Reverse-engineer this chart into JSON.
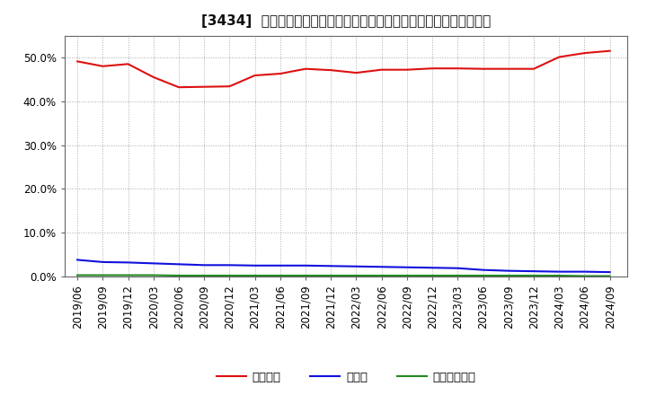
{
  "title": "[3434]  自己資本、のれん、繰延税金資産の総資産に対する比率の推移",
  "background_color": "#ffffff",
  "plot_bg_color": "#ffffff",
  "grid_color": "#aaaaaa",
  "x_labels": [
    "2019/06",
    "2019/09",
    "2019/12",
    "2020/03",
    "2020/06",
    "2020/09",
    "2020/12",
    "2021/03",
    "2021/06",
    "2021/09",
    "2021/12",
    "2022/03",
    "2022/06",
    "2022/09",
    "2022/12",
    "2023/03",
    "2023/06",
    "2023/09",
    "2023/12",
    "2024/03",
    "2024/06",
    "2024/09"
  ],
  "equity_ratio": [
    49.1,
    48.0,
    48.5,
    45.5,
    43.2,
    43.3,
    43.4,
    45.9,
    46.3,
    47.4,
    47.1,
    46.5,
    47.2,
    47.2,
    47.5,
    47.5,
    47.4,
    47.4,
    47.4,
    50.1,
    51.0,
    51.5
  ],
  "goodwill_ratio": [
    3.8,
    3.3,
    3.2,
    3.0,
    2.8,
    2.6,
    2.6,
    2.5,
    2.5,
    2.5,
    2.4,
    2.3,
    2.2,
    2.1,
    2.0,
    1.9,
    1.5,
    1.3,
    1.2,
    1.1,
    1.1,
    1.0
  ],
  "deferred_tax_ratio": [
    0.3,
    0.3,
    0.3,
    0.3,
    0.2,
    0.2,
    0.2,
    0.2,
    0.2,
    0.2,
    0.2,
    0.2,
    0.2,
    0.2,
    0.2,
    0.2,
    0.2,
    0.2,
    0.2,
    0.2,
    0.1,
    0.1
  ],
  "equity_color": "#dd1111",
  "goodwill_color": "#1111dd",
  "deferred_tax_color": "#228822",
  "legend_labels": [
    "自己資本",
    "のれん",
    "繰延税金資産"
  ],
  "ylim": [
    0,
    55
  ],
  "yticks": [
    0,
    10,
    20,
    30,
    40,
    50
  ],
  "title_fontsize": 11
}
